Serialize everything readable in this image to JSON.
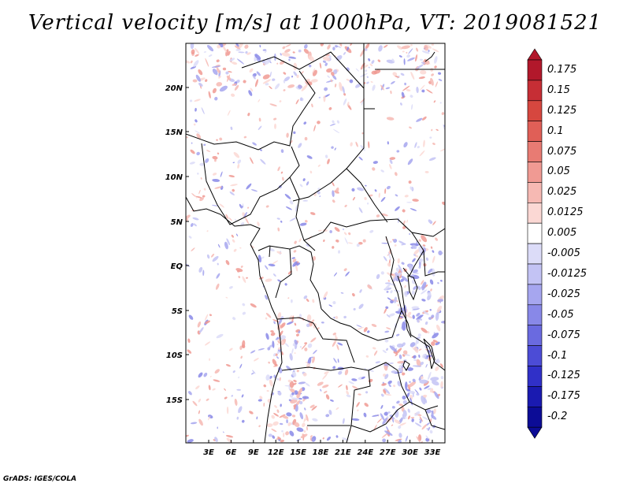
{
  "title": "Vertical velocity [m/s] at 1000hPa, VT: 2019081521",
  "credit": "GrADS: IGES/COLA",
  "lat_labels": [
    "20N",
    "15N",
    "10N",
    "5N",
    "EQ",
    "5S",
    "10S",
    "15S"
  ],
  "lon_labels": [
    "3E",
    "6E",
    "9E",
    "12E",
    "15E",
    "18E",
    "21E",
    "24E",
    "27E",
    "30E",
    "33E"
  ],
  "colorbar": {
    "labels": [
      "0.175",
      "0.15",
      "0.125",
      "0.1",
      "0.075",
      "0.05",
      "0.025",
      "0.0125",
      "0.005",
      "-0.005",
      "-0.0125",
      "-0.025",
      "-0.05",
      "-0.075",
      "-0.1",
      "-0.125",
      "-0.175",
      "-0.2"
    ],
    "colors": [
      "#b2182b",
      "#c62e35",
      "#d6473f",
      "#e05f57",
      "#e87b73",
      "#f09a93",
      "#f6b9b3",
      "#fbd8d4",
      "#ffffff",
      "#dcdcf8",
      "#c3c3f4",
      "#a6a6ef",
      "#8888e8",
      "#6a6ae0",
      "#4c4cd6",
      "#3030c8",
      "#1a1ab0",
      "#0c0c96"
    ],
    "top_arrow_color": "#b2182b",
    "bottom_arrow_color": "#0c0c96"
  }
}
